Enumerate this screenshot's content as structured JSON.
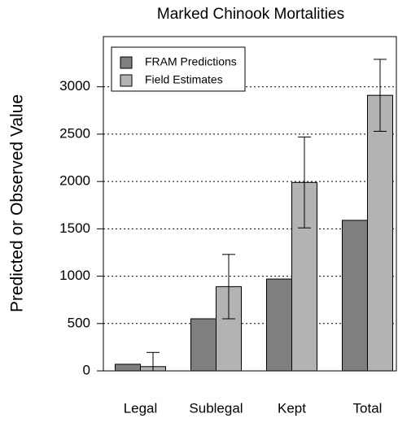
{
  "chart_data": {
    "type": "bar",
    "title": "Marked Chinook Mortalities",
    "ylabel": "Predicted or Observed Value",
    "categories": [
      "Legal",
      "Sublegal",
      "Kept",
      "Total"
    ],
    "series": [
      {
        "name": "FRAM Predictions",
        "color": "#7f7f7f",
        "values": [
          70,
          550,
          970,
          1590
        ]
      },
      {
        "name": "Field Estimates",
        "color": "#b3b3b3",
        "values": [
          45,
          890,
          1990,
          2910
        ],
        "errors": [
          150,
          340,
          480,
          380
        ]
      }
    ],
    "ylim": [
      0,
      3530
    ],
    "yticks": [
      0,
      500,
      1000,
      1500,
      2000,
      2500,
      3000
    ],
    "grid": true,
    "legend": "top-left"
  }
}
